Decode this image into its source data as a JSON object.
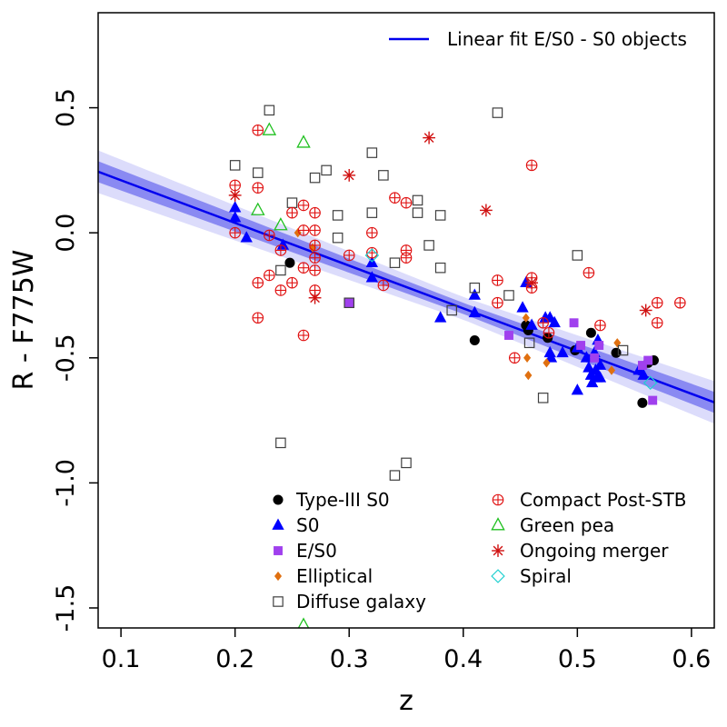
{
  "chart_data": {
    "type": "scatter",
    "xlabel": "z",
    "ylabel": "R - F775W",
    "xlim": [
      0.08,
      0.62
    ],
    "ylim": [
      -1.58,
      0.88
    ],
    "x_ticks": [
      {
        "value": 0.1,
        "label": "0.1"
      },
      {
        "value": 0.2,
        "label": "0.2"
      },
      {
        "value": 0.3,
        "label": "0.3"
      },
      {
        "value": 0.4,
        "label": "0.4"
      },
      {
        "value": 0.5,
        "label": "0.5"
      },
      {
        "value": 0.6,
        "label": "0.6"
      }
    ],
    "y_ticks": [
      {
        "value": 0.5,
        "label": "0.5"
      },
      {
        "value": 0.0,
        "label": "0.0"
      },
      {
        "value": -0.5,
        "label": "-0.5"
      },
      {
        "value": -1.0,
        "label": "-1.0"
      },
      {
        "value": -1.5,
        "label": "-1.5"
      }
    ],
    "fit": {
      "label": "Linear fit E/S0 - S0 objects",
      "color": "#0000ee",
      "intercept": 0.381,
      "slope": -1.708,
      "band_inner_halfwidth": [
        0.042,
        0.022,
        0.042
      ],
      "band_outer_halfwidth": [
        0.085,
        0.045,
        0.085
      ],
      "band_pivot_x": [
        0.08,
        0.4,
        0.62
      ]
    },
    "series": [
      {
        "name": "Type-III S0",
        "marker": "circle-filled",
        "color": "#000000",
        "points": [
          [
            0.248,
            -0.12
          ],
          [
            0.41,
            -0.43
          ],
          [
            0.455,
            -0.37
          ],
          [
            0.457,
            -0.39
          ],
          [
            0.474,
            -0.42
          ],
          [
            0.498,
            -0.47
          ],
          [
            0.512,
            -0.4
          ],
          [
            0.534,
            -0.48
          ],
          [
            0.557,
            -0.68
          ],
          [
            0.562,
            -0.52
          ],
          [
            0.567,
            -0.51
          ]
        ]
      },
      {
        "name": "S0",
        "marker": "triangle-filled",
        "color": "#0000ff",
        "points": [
          [
            0.2,
            0.1
          ],
          [
            0.2,
            0.06
          ],
          [
            0.21,
            -0.02
          ],
          [
            0.242,
            -0.05
          ],
          [
            0.32,
            -0.12
          ],
          [
            0.32,
            -0.18
          ],
          [
            0.38,
            -0.34
          ],
          [
            0.41,
            -0.25
          ],
          [
            0.41,
            -0.32
          ],
          [
            0.452,
            -0.3
          ],
          [
            0.455,
            -0.2
          ],
          [
            0.46,
            -0.37
          ],
          [
            0.472,
            -0.34
          ],
          [
            0.476,
            -0.34
          ],
          [
            0.476,
            -0.48
          ],
          [
            0.477,
            -0.5
          ],
          [
            0.48,
            -0.36
          ],
          [
            0.487,
            -0.48
          ],
          [
            0.5,
            -0.46
          ],
          [
            0.5,
            -0.63
          ],
          [
            0.508,
            -0.5
          ],
          [
            0.51,
            -0.54
          ],
          [
            0.512,
            -0.57
          ],
          [
            0.513,
            -0.6
          ],
          [
            0.515,
            -0.48
          ],
          [
            0.516,
            -0.55
          ],
          [
            0.517,
            -0.58
          ],
          [
            0.518,
            -0.43
          ],
          [
            0.52,
            -0.58
          ],
          [
            0.52,
            -0.53
          ],
          [
            0.554,
            -0.55
          ],
          [
            0.558,
            -0.57
          ]
        ]
      },
      {
        "name": "E/S0",
        "marker": "square-filled",
        "color": "#a040ee",
        "points": [
          [
            0.3,
            -0.28
          ],
          [
            0.44,
            -0.41
          ],
          [
            0.497,
            -0.36
          ],
          [
            0.503,
            -0.45
          ],
          [
            0.515,
            -0.5
          ],
          [
            0.519,
            -0.45
          ],
          [
            0.557,
            -0.53
          ],
          [
            0.562,
            -0.51
          ],
          [
            0.566,
            -0.67
          ]
        ]
      },
      {
        "name": "Elliptical",
        "marker": "diamond-filled",
        "color": "#e07010",
        "points": [
          [
            0.255,
            0.0
          ],
          [
            0.268,
            -0.06
          ],
          [
            0.455,
            -0.34
          ],
          [
            0.456,
            -0.5
          ],
          [
            0.457,
            -0.57
          ],
          [
            0.473,
            -0.52
          ],
          [
            0.53,
            -0.55
          ],
          [
            0.535,
            -0.44
          ]
        ]
      },
      {
        "name": "Diffuse galaxy",
        "marker": "square-open",
        "color": "#404040",
        "points": [
          [
            0.2,
            0.27
          ],
          [
            0.23,
            0.49
          ],
          [
            0.22,
            0.24
          ],
          [
            0.25,
            0.12
          ],
          [
            0.24,
            -0.15
          ],
          [
            0.24,
            -0.84
          ],
          [
            0.27,
            0.22
          ],
          [
            0.28,
            0.25
          ],
          [
            0.29,
            0.07
          ],
          [
            0.29,
            -0.02
          ],
          [
            0.3,
            -0.28
          ],
          [
            0.32,
            0.32
          ],
          [
            0.32,
            0.08
          ],
          [
            0.33,
            0.23
          ],
          [
            0.34,
            -0.12
          ],
          [
            0.34,
            -0.97
          ],
          [
            0.35,
            -0.92
          ],
          [
            0.36,
            0.13
          ],
          [
            0.36,
            0.08
          ],
          [
            0.37,
            -0.05
          ],
          [
            0.38,
            0.07
          ],
          [
            0.38,
            -0.14
          ],
          [
            0.39,
            -0.31
          ],
          [
            0.43,
            0.48
          ],
          [
            0.41,
            -0.22
          ],
          [
            0.44,
            -0.25
          ],
          [
            0.458,
            -0.44
          ],
          [
            0.47,
            -0.66
          ],
          [
            0.5,
            -0.09
          ],
          [
            0.54,
            -0.47
          ]
        ]
      },
      {
        "name": "Compact Post-STB",
        "marker": "circle-plus",
        "color": "#e01010",
        "points": [
          [
            0.2,
            0.19
          ],
          [
            0.2,
            0.0
          ],
          [
            0.22,
            0.41
          ],
          [
            0.22,
            0.18
          ],
          [
            0.22,
            -0.2
          ],
          [
            0.22,
            -0.34
          ],
          [
            0.23,
            -0.01
          ],
          [
            0.23,
            -0.17
          ],
          [
            0.24,
            -0.07
          ],
          [
            0.24,
            -0.23
          ],
          [
            0.25,
            0.08
          ],
          [
            0.25,
            -0.2
          ],
          [
            0.26,
            0.11
          ],
          [
            0.26,
            0.01
          ],
          [
            0.26,
            -0.14
          ],
          [
            0.26,
            -0.41
          ],
          [
            0.27,
            0.08
          ],
          [
            0.27,
            0.01
          ],
          [
            0.27,
            -0.05
          ],
          [
            0.27,
            -0.1
          ],
          [
            0.27,
            -0.15
          ],
          [
            0.27,
            -0.23
          ],
          [
            0.3,
            -0.09
          ],
          [
            0.32,
            0.0
          ],
          [
            0.32,
            -0.08
          ],
          [
            0.33,
            -0.21
          ],
          [
            0.34,
            0.14
          ],
          [
            0.35,
            0.12
          ],
          [
            0.35,
            -0.07
          ],
          [
            0.35,
            -0.1
          ],
          [
            0.43,
            -0.19
          ],
          [
            0.43,
            -0.28
          ],
          [
            0.445,
            -0.5
          ],
          [
            0.46,
            0.27
          ],
          [
            0.46,
            -0.18
          ],
          [
            0.46,
            -0.22
          ],
          [
            0.47,
            -0.36
          ],
          [
            0.475,
            -0.4
          ],
          [
            0.51,
            -0.16
          ],
          [
            0.52,
            -0.37
          ],
          [
            0.57,
            -0.28
          ],
          [
            0.57,
            -0.36
          ],
          [
            0.59,
            -0.28
          ]
        ]
      },
      {
        "name": "Green pea",
        "marker": "triangle-open",
        "color": "#20c020",
        "points": [
          [
            0.23,
            0.41
          ],
          [
            0.26,
            0.36
          ],
          [
            0.22,
            0.09
          ],
          [
            0.24,
            0.03
          ],
          [
            0.26,
            -1.57
          ]
        ]
      },
      {
        "name": "Ongoing merger",
        "marker": "asterisk",
        "color": "#d01010",
        "points": [
          [
            0.2,
            0.15
          ],
          [
            0.3,
            0.23
          ],
          [
            0.37,
            0.38
          ],
          [
            0.42,
            0.09
          ],
          [
            0.27,
            -0.26
          ],
          [
            0.46,
            -0.2
          ],
          [
            0.56,
            -0.31
          ]
        ]
      },
      {
        "name": "Spiral",
        "marker": "diamond-open",
        "color": "#20d0d0",
        "points": [
          [
            0.32,
            -0.09
          ],
          [
            0.564,
            -0.6
          ]
        ]
      }
    ]
  }
}
